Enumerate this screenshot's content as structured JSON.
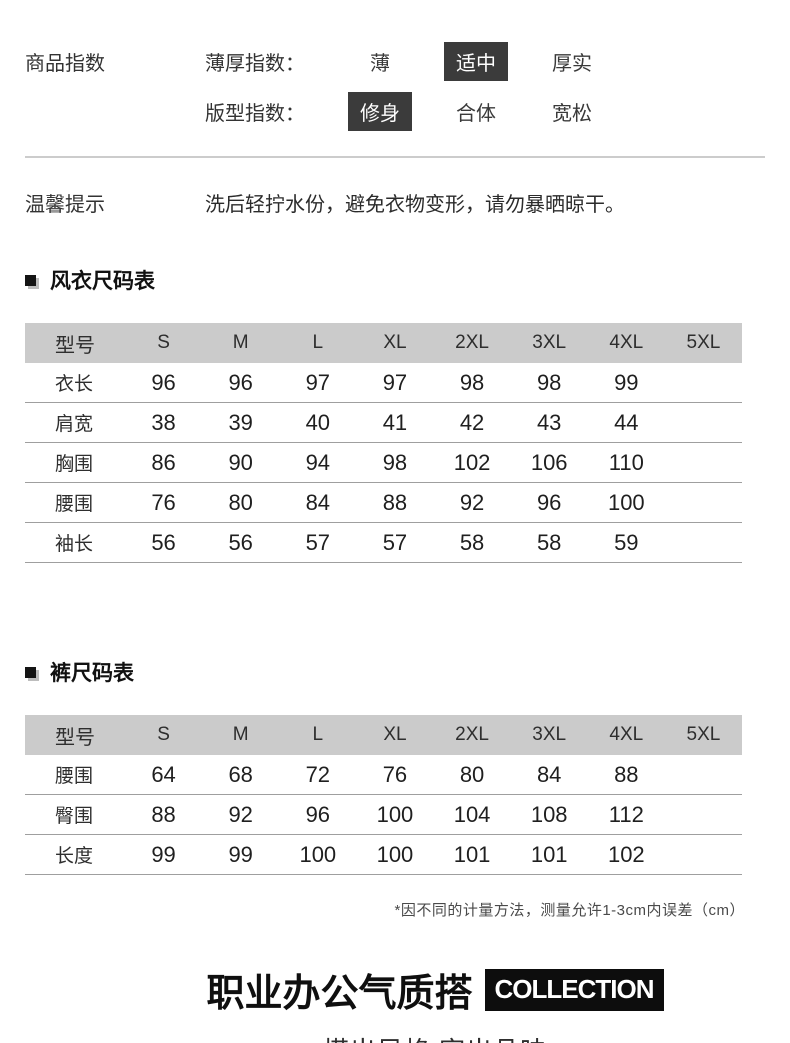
{
  "product_index": {
    "section_label": "商品指数",
    "rows": [
      {
        "label": "薄厚指数：",
        "options": [
          {
            "text": "薄",
            "selected": false
          },
          {
            "text": "适中",
            "selected": true
          },
          {
            "text": "厚实",
            "selected": false
          }
        ]
      },
      {
        "label": "版型指数：",
        "options": [
          {
            "text": "修身",
            "selected": true
          },
          {
            "text": "合体",
            "selected": false
          },
          {
            "text": "宽松",
            "selected": false
          }
        ]
      }
    ]
  },
  "tips": {
    "label": "温馨提示",
    "text": "洗后轻拧水份，避免衣物变形，请勿暴晒晾干。"
  },
  "size_tables": [
    {
      "title": "风衣尺码表",
      "headers": [
        "型号",
        "S",
        "M",
        "L",
        "XL",
        "2XL",
        "3XL",
        "4XL",
        "5XL"
      ],
      "rows": [
        {
          "label": "衣长",
          "values": [
            "96",
            "96",
            "97",
            "97",
            "98",
            "98",
            "99",
            ""
          ]
        },
        {
          "label": "肩宽",
          "values": [
            "38",
            "39",
            "40",
            "41",
            "42",
            "43",
            "44",
            ""
          ]
        },
        {
          "label": "胸围",
          "values": [
            "86",
            "90",
            "94",
            "98",
            "102",
            "106",
            "110",
            ""
          ]
        },
        {
          "label": "腰围",
          "values": [
            "76",
            "80",
            "84",
            "88",
            "92",
            "96",
            "100",
            ""
          ]
        },
        {
          "label": "袖长",
          "values": [
            "56",
            "56",
            "57",
            "57",
            "58",
            "58",
            "59",
            ""
          ]
        }
      ]
    },
    {
      "title": "裤尺码表",
      "headers": [
        "型号",
        "S",
        "M",
        "L",
        "XL",
        "2XL",
        "3XL",
        "4XL",
        "5XL"
      ],
      "rows": [
        {
          "label": "腰围",
          "values": [
            "64",
            "68",
            "72",
            "76",
            "80",
            "84",
            "88",
            ""
          ]
        },
        {
          "label": "臀围",
          "values": [
            "88",
            "92",
            "96",
            "100",
            "104",
            "108",
            "112",
            ""
          ]
        },
        {
          "label": "长度",
          "values": [
            "99",
            "99",
            "100",
            "100",
            "101",
            "101",
            "102",
            ""
          ]
        }
      ]
    }
  ],
  "footnote": "*因不同的计量方法，测量允许1-3cm内误差（cm）",
  "brand": {
    "heading": "职业办公气质搭",
    "collection": "COLLECTION",
    "tagline": "搭出风格 穿出品味"
  },
  "colors": {
    "badge_bg": "#3b3b3b",
    "badge_text": "#ffffff",
    "table_header_bg": "#cbcbcb",
    "row_border": "#9f9f9f",
    "collection_bg": "#0d0d0d",
    "text": "#2b2b2b"
  }
}
